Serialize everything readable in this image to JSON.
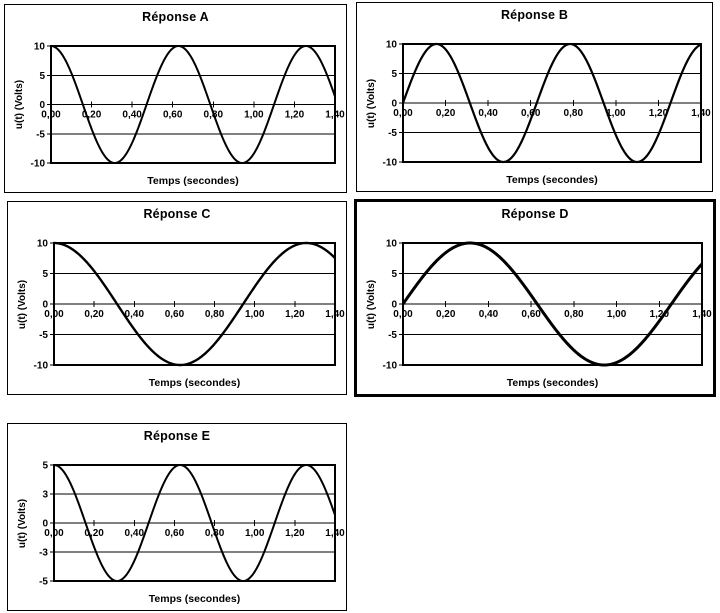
{
  "page": {
    "background_color": "#ffffff",
    "description": "Five answer-choice charts (Réponse A–E), each showing a sinusoidal voltage u(t) versus time"
  },
  "colors": {
    "line": "#000000",
    "grid": "#000000",
    "frame": "#000000",
    "text": "#000000",
    "panel_border": "#000000",
    "panel_background": "#ffffff"
  },
  "chart_data": [
    {
      "id": "A",
      "type": "line",
      "title": "Réponse A",
      "xlabel": "Temps (secondes)",
      "ylabel": "u(t) (Volts)",
      "series": [
        {
          "name": "u(t)",
          "waveform": "cosine",
          "amplitude_volts": 10,
          "angular_frequency_rad_per_s": 10,
          "period_s": 0.628,
          "phase_deg": 0,
          "value_at_t0_volts": 10
        }
      ],
      "xlim": [
        0,
        1.4
      ],
      "ylim": [
        -10,
        10
      ],
      "x_ticks": [
        {
          "value": 0.0,
          "label": "0,00"
        },
        {
          "value": 0.2,
          "label": "0,20"
        },
        {
          "value": 0.4,
          "label": "0,40"
        },
        {
          "value": 0.6,
          "label": "0,60"
        },
        {
          "value": 0.8,
          "label": "0,80"
        },
        {
          "value": 1.0,
          "label": "1,00"
        },
        {
          "value": 1.2,
          "label": "1,20"
        },
        {
          "value": 1.4,
          "label": "1,40"
        }
      ],
      "y_ticks": [
        {
          "value": 10,
          "label": "10"
        },
        {
          "value": 5,
          "label": "5"
        },
        {
          "value": 0,
          "label": "0"
        },
        {
          "value": -5,
          "label": "-5"
        },
        {
          "value": -10,
          "label": "-10"
        }
      ],
      "grid": true,
      "line_width": 2
    },
    {
      "id": "B",
      "type": "line",
      "title": "Réponse B",
      "xlabel": "Temps (secondes)",
      "ylabel": "u(t) (Volts)",
      "series": [
        {
          "name": "u(t)",
          "waveform": "sine",
          "amplitude_volts": 10,
          "angular_frequency_rad_per_s": 10,
          "period_s": 0.628,
          "phase_deg": 0,
          "value_at_t0_volts": 0
        }
      ],
      "xlim": [
        0,
        1.4
      ],
      "ylim": [
        -10,
        10
      ],
      "x_ticks": [
        {
          "value": 0.0,
          "label": "0,00"
        },
        {
          "value": 0.2,
          "label": "0,20"
        },
        {
          "value": 0.4,
          "label": "0,40"
        },
        {
          "value": 0.6,
          "label": "0,60"
        },
        {
          "value": 0.8,
          "label": "0,80"
        },
        {
          "value": 1.0,
          "label": "1,00"
        },
        {
          "value": 1.2,
          "label": "1,20"
        },
        {
          "value": 1.4,
          "label": "1,40"
        }
      ],
      "y_ticks": [
        {
          "value": 10,
          "label": "10"
        },
        {
          "value": 5,
          "label": "5"
        },
        {
          "value": 0,
          "label": "0"
        },
        {
          "value": -5,
          "label": "-5"
        },
        {
          "value": -10,
          "label": "-10"
        }
      ],
      "grid": true,
      "line_width": 2.2
    },
    {
      "id": "C",
      "type": "line",
      "title": "Réponse C",
      "xlabel": "Temps (secondes)",
      "ylabel": "u(t) (Volts)",
      "series": [
        {
          "name": "u(t)",
          "waveform": "cosine",
          "amplitude_volts": 10,
          "angular_frequency_rad_per_s": 5,
          "period_s": 1.257,
          "phase_deg": 0,
          "value_at_t0_volts": 10
        }
      ],
      "xlim": [
        0,
        1.4
      ],
      "ylim": [
        -10,
        10
      ],
      "x_ticks": [
        {
          "value": 0.0,
          "label": "0,00"
        },
        {
          "value": 0.2,
          "label": "0,20"
        },
        {
          "value": 0.4,
          "label": "0,40"
        },
        {
          "value": 0.6,
          "label": "0,60"
        },
        {
          "value": 0.8,
          "label": "0,80"
        },
        {
          "value": 1.0,
          "label": "1,00"
        },
        {
          "value": 1.2,
          "label": "1,20"
        },
        {
          "value": 1.4,
          "label": "1,40"
        }
      ],
      "y_ticks": [
        {
          "value": 10,
          "label": "10"
        },
        {
          "value": 5,
          "label": "5"
        },
        {
          "value": 0,
          "label": "0"
        },
        {
          "value": -5,
          "label": "-5"
        },
        {
          "value": -10,
          "label": "-10"
        }
      ],
      "grid": true,
      "line_width": 2.4
    },
    {
      "id": "D",
      "type": "line",
      "title": "Réponse D",
      "xlabel": "Temps (secondes)",
      "ylabel": "u(t) (Volts)",
      "series": [
        {
          "name": "u(t)",
          "waveform": "sine",
          "amplitude_volts": 10,
          "angular_frequency_rad_per_s": 5,
          "period_s": 1.257,
          "phase_deg": 0,
          "value_at_t0_volts": 0
        }
      ],
      "xlim": [
        0,
        1.4
      ],
      "ylim": [
        -10,
        10
      ],
      "x_ticks": [
        {
          "value": 0.0,
          "label": "0,00"
        },
        {
          "value": 0.2,
          "label": "0,20"
        },
        {
          "value": 0.4,
          "label": "0,40"
        },
        {
          "value": 0.6,
          "label": "0,60"
        },
        {
          "value": 0.8,
          "label": "0,80"
        },
        {
          "value": 1.0,
          "label": "1,00"
        },
        {
          "value": 1.2,
          "label": "1,20"
        },
        {
          "value": 1.4,
          "label": "1,40"
        }
      ],
      "y_ticks": [
        {
          "value": 10,
          "label": "10"
        },
        {
          "value": 5,
          "label": "5"
        },
        {
          "value": 0,
          "label": "0"
        },
        {
          "value": -5,
          "label": "-5"
        },
        {
          "value": -10,
          "label": "-10"
        }
      ],
      "grid": true,
      "line_width": 3,
      "emphasized_border": true
    },
    {
      "id": "E",
      "type": "line",
      "title": "Réponse E",
      "xlabel": "Temps (secondes)",
      "ylabel": "u(t) (Volts)",
      "series": [
        {
          "name": "u(t)",
          "waveform": "cosine",
          "amplitude_volts": 5,
          "angular_frequency_rad_per_s": 10,
          "period_s": 0.628,
          "phase_deg": 0,
          "value_at_t0_volts": 5
        }
      ],
      "xlim": [
        0,
        1.4
      ],
      "ylim": [
        -5,
        5
      ],
      "x_ticks": [
        {
          "value": 0.0,
          "label": "0,00"
        },
        {
          "value": 0.2,
          "label": "0,20"
        },
        {
          "value": 0.4,
          "label": "0,40"
        },
        {
          "value": 0.6,
          "label": "0,60"
        },
        {
          "value": 0.8,
          "label": "0,80"
        },
        {
          "value": 1.0,
          "label": "1,00"
        },
        {
          "value": 1.2,
          "label": "1,20"
        },
        {
          "value": 1.4,
          "label": "1,40"
        }
      ],
      "y_ticks": [
        {
          "value": 5,
          "label": "5"
        },
        {
          "value": 2.5,
          "label": "3"
        },
        {
          "value": 0,
          "label": "0"
        },
        {
          "value": -2.5,
          "label": "-3"
        },
        {
          "value": -5,
          "label": "-5"
        }
      ],
      "grid": true,
      "line_width": 2
    }
  ]
}
